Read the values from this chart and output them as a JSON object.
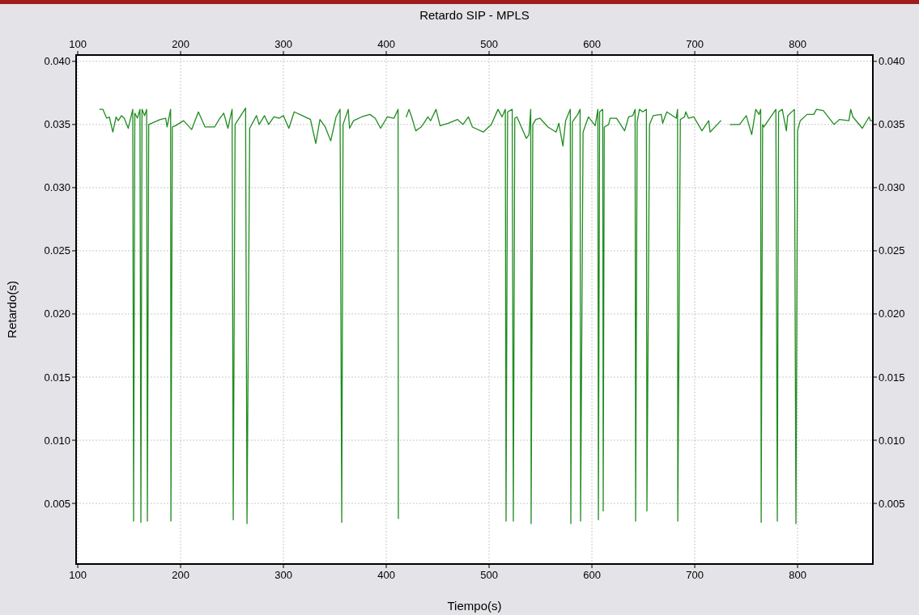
{
  "chart_data": {
    "type": "line",
    "title": "Retardo SIP - MPLS",
    "xlabel": "Tiempo(s)",
    "ylabel": "Retardo(s)",
    "xlim": [
      98.4,
      873.2
    ],
    "xticks": [
      100,
      200,
      300,
      400,
      500,
      600,
      700,
      800
    ],
    "x2lim": [
      98.4,
      873.2
    ],
    "x2ticks": [
      100,
      200,
      300,
      400,
      500,
      600,
      700,
      800
    ],
    "ylim": [
      0.0002,
      0.0405
    ],
    "yticks": [
      0.005,
      {
        "value": 0.01,
        "label": "0.010"
      },
      0.015,
      {
        "value": 0.02,
        "label": "0.020"
      },
      0.025,
      {
        "value": 0.03,
        "label": "0.030"
      },
      0.035,
      {
        "value": 0.04,
        "label": "0.040"
      }
    ],
    "y2lim": [
      0.0002,
      0.0405
    ],
    "y2ticks": [
      0.005,
      {
        "value": 0.01,
        "label": "0.010"
      },
      0.015,
      {
        "value": 0.02,
        "label": "0.020"
      },
      0.025,
      {
        "value": 0.03,
        "label": "0.030"
      },
      0.035,
      {
        "value": 0.04,
        "label": "0.040"
      }
    ],
    "grid": true,
    "marker": "none",
    "line_style": "solid",
    "x": [
      121.3,
      124.4,
      128.1,
      130.7,
      134.1,
      137.3,
      139.4,
      142.5,
      145.2,
      149.1,
      153.5,
      154.3,
      155.5,
      158,
      160.5,
      161.4,
      162.5,
      165,
      167,
      167.7,
      169,
      180.3,
      185.5,
      186.9,
      190.3,
      190.6,
      192,
      195,
      202.9,
      210.8,
      217.3,
      223.8,
      233,
      238.2,
      242,
      246,
      250.1,
      251.2,
      253,
      263.2,
      264.6,
      267.2,
      273.8,
      276.4,
      281.6,
      285.6,
      290.8,
      296,
      300,
      305.3,
      310.5,
      318.4,
      326.3,
      331.5,
      335.5,
      340.7,
      346,
      351.2,
      355.1,
      356.7,
      358,
      363,
      364.3,
      368.2,
      376.1,
      384,
      389.2,
      394.5,
      401,
      407.6,
      411.5,
      411.8,
      415,
      419.5,
      422.1,
      424.7,
      428.7,
      433.9,
      436.5,
      440.5,
      443.1,
      448.4,
      452.3,
      460.2,
      469.4,
      474.6,
      479.9,
      483.8,
      494.3,
      502.2,
      508.7,
      512.6,
      515.8,
      516.5,
      518,
      522.5,
      523.6,
      525,
      527.1,
      536.2,
      538.8,
      540.5,
      540.9,
      542.5,
      545.4,
      549.4,
      557.3,
      565.2,
      567.8,
      571.8,
      574.4,
      579,
      579.5,
      581,
      586.2,
      588.5,
      589,
      591.4,
      596.6,
      603.2,
      605.8,
      606.3,
      607.5,
      610.5,
      611,
      612,
      616.3,
      617.6,
      623.9,
      631.8,
      635.7,
      639.7,
      642,
      642.5,
      644,
      646.2,
      649.4,
      653,
      653.5,
      656,
      659.6,
      667.5,
      668.8,
      672.8,
      682,
      683.3,
      683.5,
      686,
      690,
      691.3,
      693.9,
      699.1,
      707,
      713.6,
      714.9,
      725.4,
      730,
      734.4,
      743.6,
      750.1,
      755.4,
      759.3,
      762.5,
      764.1,
      764.6,
      766,
      767.2,
      778.9,
      780.3,
      781.5,
      785.1,
      789.1,
      790.4,
      796.9,
      798.4,
      800,
      802.6,
      809.2,
      815.8,
      818.4,
      825,
      835.5,
      840.7,
      849.9,
      851.7,
      853.8,
      863,
      869.5,
      870.9,
      873
    ],
    "series": [
      {
        "color": "#1f8c1f",
        "values": [
          0.0362,
          0.0362,
          0.0355,
          0.0356,
          0.0344,
          0.0356,
          0.0353,
          0.0357,
          0.0355,
          0.0347,
          0.0362,
          0.0036,
          0.0359,
          0.0355,
          0.0362,
          0.0035,
          0.0362,
          0.0357,
          0.0362,
          0.0036,
          0.035,
          0.0354,
          0.0355,
          0.0348,
          0.0362,
          0.0036,
          0.0348,
          0.0349,
          0.0353,
          0.0346,
          0.036,
          0.0348,
          0.0348,
          0.0355,
          0.0359,
          0.0347,
          0.0362,
          0.0037,
          0.035,
          0.0363,
          0.0034,
          0.0347,
          0.0357,
          0.035,
          0.0357,
          0.035,
          0.0356,
          0.0355,
          0.0357,
          0.0347,
          0.036,
          0.0357,
          0.0354,
          0.0335,
          0.0354,
          0.0348,
          0.0337,
          0.0356,
          0.0362,
          0.0035,
          0.035,
          0.0362,
          0.0347,
          0.0353,
          0.0356,
          0.0358,
          0.0355,
          0.0347,
          0.0356,
          0.0355,
          0.0362,
          0.0038,
          null,
          0.0356,
          0.0362,
          0.0356,
          0.0345,
          0.0348,
          0.0351,
          0.0356,
          0.0353,
          0.0362,
          0.0349,
          0.0351,
          0.0354,
          0.035,
          0.0356,
          0.0348,
          0.0344,
          0.035,
          0.0362,
          0.0356,
          0.0362,
          0.0036,
          0.036,
          0.0362,
          0.0036,
          0.0355,
          0.0356,
          0.0339,
          0.0342,
          0.0362,
          0.0034,
          0.035,
          0.0354,
          0.0355,
          0.0348,
          0.0344,
          0.0351,
          0.0333,
          0.0353,
          0.0362,
          0.0034,
          0.0352,
          0.0358,
          0.0362,
          0.0036,
          0.0344,
          0.0356,
          0.0349,
          0.0362,
          0.0037,
          0.036,
          0.0362,
          0.0044,
          0.0348,
          0.035,
          0.0355,
          0.0355,
          0.0345,
          0.0356,
          0.0357,
          0.0362,
          0.0036,
          0.0352,
          0.0362,
          0.036,
          0.0362,
          0.0044,
          0.035,
          0.0357,
          0.0358,
          0.0351,
          0.036,
          0.0355,
          0.0362,
          0.0036,
          0.0354,
          0.0356,
          0.036,
          0.0355,
          0.0356,
          0.0345,
          0.0353,
          0.0344,
          0.0353,
          null,
          0.035,
          0.035,
          0.0357,
          0.0342,
          0.0362,
          0.0358,
          0.0362,
          0.0035,
          0.035,
          0.0348,
          0.0362,
          0.0036,
          0.036,
          0.0362,
          0.0345,
          0.0357,
          0.0362,
          0.0034,
          0.0345,
          0.0353,
          0.0358,
          0.0358,
          0.0362,
          0.0361,
          0.035,
          0.0354,
          0.0353,
          0.0362,
          0.0356,
          0.0347,
          0.0356,
          0.0353,
          0.0353
        ]
      }
    ]
  }
}
